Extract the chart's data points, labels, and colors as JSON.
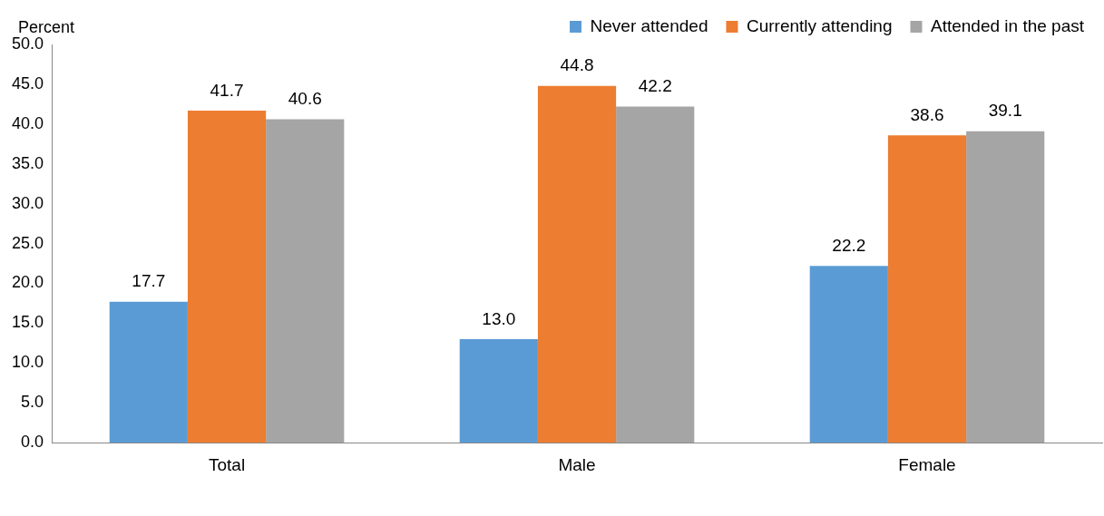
{
  "chart_data": {
    "type": "bar",
    "ylabel": "Percent",
    "categories": [
      "Total",
      "Male",
      "Female"
    ],
    "series": [
      {
        "name": "Never attended",
        "color": "#5b9bd5",
        "values": [
          17.7,
          13.0,
          22.2
        ],
        "value_labels": [
          "17.7",
          "13.0",
          "22.2"
        ]
      },
      {
        "name": "Currently attending",
        "color": "#ed7d31",
        "values": [
          41.7,
          44.8,
          38.6
        ],
        "value_labels": [
          "41.7",
          "44.8",
          "38.6"
        ]
      },
      {
        "name": "Attended in the past",
        "color": "#a5a5a5",
        "values": [
          40.6,
          42.2,
          39.1
        ],
        "value_labels": [
          "40.6",
          "42.2",
          "39.1"
        ]
      }
    ],
    "ylim": [
      0,
      50
    ],
    "yticks": [
      {
        "value": 0,
        "label": "0.0"
      },
      {
        "value": 5,
        "label": "5.0"
      },
      {
        "value": 10,
        "label": "10.0"
      },
      {
        "value": 15,
        "label": "15.0"
      },
      {
        "value": 20,
        "label": "20.0"
      },
      {
        "value": 25,
        "label": "25.0"
      },
      {
        "value": 30,
        "label": "30.0"
      },
      {
        "value": 35,
        "label": "35.0"
      },
      {
        "value": 40,
        "label": "40.0"
      },
      {
        "value": 45,
        "label": "45.0"
      },
      {
        "value": 50,
        "label": "50.0"
      }
    ],
    "grid": false,
    "legend": "top right"
  }
}
